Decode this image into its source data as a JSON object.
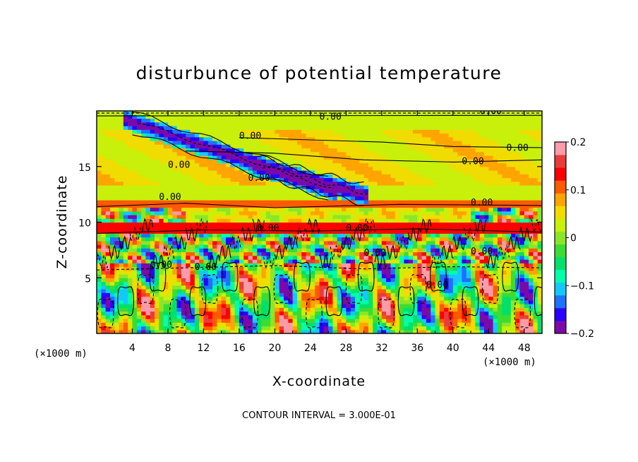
{
  "chart_data": {
    "type": "heatmap",
    "title": "disturbunce of potential temperature",
    "xlabel": "X-coordinate",
    "ylabel": "Z-coordinate",
    "x_unit": "(×1000 m)",
    "y_unit": "(×1000 m)",
    "xlim": [
      0,
      50
    ],
    "ylim": [
      0,
      20
    ],
    "x_ticks": [
      "4",
      "8",
      "12",
      "16",
      "20",
      "24",
      "28",
      "32",
      "36",
      "40",
      "44",
      "48"
    ],
    "y_ticks": [
      "5",
      "10",
      "15"
    ],
    "colorbar": {
      "range": [
        -0.2,
        0.2
      ],
      "tick_labels": [
        "0.2",
        "0.1",
        "0",
        "−0.1",
        "−0.2"
      ],
      "colors": [
        "#7b0aa8",
        "#2a00ff",
        "#1e70ff",
        "#14c8ff",
        "#00ffaa",
        "#00e06a",
        "#3cdc32",
        "#8ce628",
        "#c8f00a",
        "#f0dc00",
        "#ffa400",
        "#ff5a00",
        "#ff0000",
        "#e83c3c",
        "#ff9aa8"
      ]
    },
    "contour_labels": [
      "0.00",
      "0.00",
      "0.00",
      "0.00",
      "0.00",
      "0.00",
      "0.00",
      "0.00",
      "0.00",
      "0.00",
      "0.00",
      "0.00",
      "0.00",
      "0.00",
      "0.00",
      "0.00"
    ],
    "bands": [
      {
        "z": [
          18.5,
          20
        ],
        "level": 0.03
      },
      {
        "z": [
          13.5,
          18.5
        ],
        "level": 0.05
      },
      {
        "z": [
          12,
          13.5
        ],
        "level": 0.02
      },
      {
        "z": [
          11.2,
          12
        ],
        "level": 0.12
      },
      {
        "z": [
          10.5,
          11.2
        ],
        "level": 0.04
      },
      {
        "z": [
          9.1,
          9.9
        ],
        "level": 0.13
      },
      {
        "z": [
          0,
          9.1
        ],
        "level": -0.03
      }
    ],
    "features": [
      {
        "kind": "negative-streak",
        "x": [
          4,
          26
        ],
        "z": [
          19,
          13
        ]
      },
      {
        "kind": "negative-streak",
        "x": [
          18,
          30
        ],
        "z": [
          15,
          12.5
        ]
      },
      {
        "kind": "mixed-layer",
        "z": [
          4,
          11
        ]
      },
      {
        "kind": "cells",
        "z": [
          0,
          6
        ]
      }
    ],
    "grid": false,
    "legend": "right-colorbar"
  },
  "footer": {
    "contour_interval": "CONTOUR INTERVAL = 3.000E-01"
  }
}
